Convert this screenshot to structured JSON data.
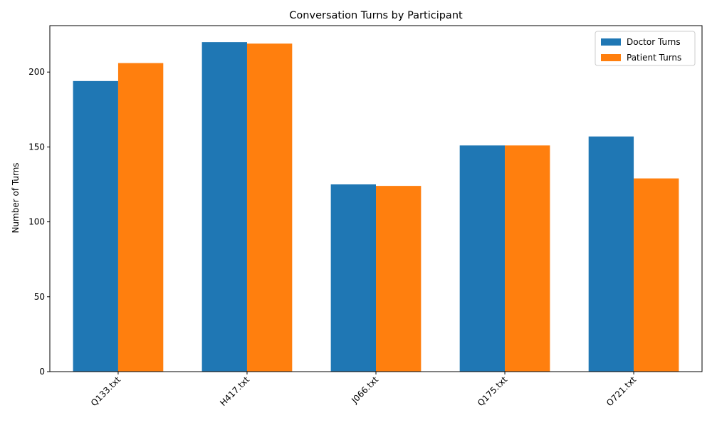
{
  "chart_data": {
    "type": "bar",
    "title": "Conversation Turns by Participant",
    "xlabel": "",
    "ylabel": "Number of Turns",
    "categories": [
      "Q133.txt",
      "H417.txt",
      "J066.txt",
      "Q175.txt",
      "O721.txt"
    ],
    "series": [
      {
        "name": "Doctor Turns",
        "color": "#1f77b4",
        "values": [
          194,
          220,
          125,
          151,
          157
        ]
      },
      {
        "name": "Patient Turns",
        "color": "#ff7f0e",
        "values": [
          206,
          219,
          124,
          151,
          129
        ]
      }
    ],
    "ylim": [
      0,
      231
    ],
    "yticks": [
      0,
      50,
      100,
      150,
      200
    ],
    "legend_position": "top-right",
    "grid": false,
    "xtick_rotation": "45 degrees, right-aligned"
  }
}
